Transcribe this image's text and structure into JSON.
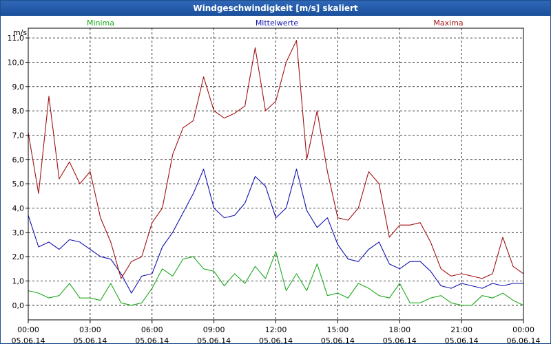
{
  "window": {
    "title": "Windgeschwindigkeit [m/s] skaliert"
  },
  "colors": {
    "minima": "#1aa81a",
    "mittel": "#1010b0",
    "maxima": "#a01010",
    "axis": "#000000",
    "grid": "#000000"
  },
  "chart_data": {
    "type": "line",
    "title": "Windgeschwindigkeit [m/s] skaliert",
    "ylabel": "m/s",
    "ylim": [
      -0.6,
      11.4
    ],
    "xlim": [
      0,
      24
    ],
    "yticks": [
      0,
      1,
      2,
      3,
      4,
      5,
      6,
      7,
      8,
      9,
      10,
      11
    ],
    "ytick_labels": [
      "0,0",
      "1,0",
      "2,0",
      "3,0",
      "4,0",
      "5,0",
      "6,0",
      "7,0",
      "8,0",
      "9,0",
      "10,0",
      "11,0"
    ],
    "xticks": [
      {
        "t": 0,
        "time": "00:00",
        "date": "05.06.14"
      },
      {
        "t": 3,
        "time": "03:00",
        "date": "05.06.14"
      },
      {
        "t": 6,
        "time": "06:00",
        "date": "05.06.14"
      },
      {
        "t": 9,
        "time": "09:00",
        "date": "05.06.14"
      },
      {
        "t": 12,
        "time": "12:00",
        "date": "05.06.14"
      },
      {
        "t": 15,
        "time": "15:00",
        "date": "05.06.14"
      },
      {
        "t": 18,
        "time": "18:00",
        "date": "05.06.14"
      },
      {
        "t": 21,
        "time": "21:00",
        "date": "05.06.14"
      },
      {
        "t": 24,
        "time": "00:00",
        "date": "06.06.14"
      }
    ],
    "legend_position": "top",
    "series": [
      {
        "name": "Minima",
        "color": "#1aa81a",
        "legend_align": "left",
        "x": [
          0,
          0.5,
          1,
          1.5,
          2,
          2.5,
          3,
          3.5,
          4,
          4.5,
          5,
          5.5,
          6,
          6.5,
          7,
          7.5,
          8,
          8.5,
          9,
          9.5,
          10,
          10.5,
          11,
          11.5,
          12,
          12.5,
          13,
          13.5,
          14,
          14.5,
          15,
          15.5,
          16,
          16.5,
          17,
          17.5,
          18,
          18.5,
          19,
          19.5,
          20,
          20.5,
          21,
          21.5,
          22,
          22.5,
          23,
          23.5,
          24
        ],
        "values": [
          0.6,
          0.5,
          0.3,
          0.4,
          0.9,
          0.3,
          0.3,
          0.2,
          0.9,
          0.1,
          0,
          0.1,
          0.7,
          1.5,
          1.2,
          1.9,
          2,
          1.5,
          1.4,
          0.8,
          1.3,
          0.9,
          1.6,
          1.1,
          2.2,
          0.6,
          1.3,
          0.6,
          1.7,
          0.4,
          0.5,
          0.3,
          0.9,
          0.7,
          0.4,
          0.3,
          0.9,
          0.1,
          0.1,
          0.3,
          0.4,
          0.1,
          0,
          0,
          0.4,
          0.3,
          0.5,
          0.2,
          0
        ]
      },
      {
        "name": "Mittelwerte",
        "color": "#1010b0",
        "legend_align": "center",
        "x": [
          0,
          0.5,
          1,
          1.5,
          2,
          2.5,
          3,
          3.5,
          4,
          4.5,
          5,
          5.5,
          6,
          6.5,
          7,
          7.5,
          8,
          8.5,
          9,
          9.5,
          10,
          10.5,
          11,
          11.5,
          12,
          12.5,
          13,
          13.5,
          14,
          14.5,
          15,
          15.5,
          16,
          16.5,
          17,
          17.5,
          18,
          18.5,
          19,
          19.5,
          20,
          20.5,
          21,
          21.5,
          22,
          22.5,
          23,
          23.5,
          24
        ],
        "values": [
          3.7,
          2.4,
          2.6,
          2.3,
          2.7,
          2.6,
          2.3,
          2.0,
          1.9,
          1.3,
          0.5,
          1.2,
          1.3,
          2.4,
          3.0,
          3.8,
          4.6,
          5.6,
          4.0,
          3.6,
          3.7,
          4.2,
          5.3,
          4.9,
          3.6,
          4.0,
          5.6,
          3.9,
          3.2,
          3.6,
          2.5,
          1.9,
          1.8,
          2.3,
          2.6,
          1.7,
          1.5,
          1.8,
          1.8,
          1.4,
          0.8,
          0.7,
          0.9,
          0.8,
          0.7,
          0.9,
          0.8,
          0.9,
          0.9
        ]
      },
      {
        "name": "Maxima",
        "color": "#a01010",
        "legend_align": "right",
        "x": [
          0,
          0.5,
          1,
          1.5,
          2,
          2.5,
          3,
          3.5,
          4,
          4.5,
          5,
          5.5,
          6,
          6.5,
          7,
          7.5,
          8,
          8.5,
          9,
          9.5,
          10,
          10.5,
          11,
          11.5,
          12,
          12.5,
          13,
          13.5,
          14,
          14.5,
          15,
          15.5,
          16,
          16.5,
          17,
          17.5,
          18,
          18.5,
          19,
          19.5,
          20,
          20.5,
          21,
          21.5,
          22,
          22.5,
          23,
          23.5,
          24
        ],
        "values": [
          7.1,
          4.6,
          8.6,
          5.2,
          5.9,
          5.0,
          5.5,
          3.6,
          2.6,
          1.1,
          1.8,
          2.0,
          3.4,
          4.0,
          6.2,
          7.3,
          7.6,
          9.4,
          8.0,
          7.7,
          7.9,
          8.2,
          10.6,
          8.0,
          8.4,
          10.0,
          10.9,
          6.0,
          8.0,
          5.5,
          3.6,
          3.5,
          4.0,
          5.5,
          5.0,
          2.8,
          3.3,
          3.3,
          3.4,
          2.6,
          1.5,
          1.2,
          1.3,
          1.2,
          1.1,
          1.3,
          2.8,
          1.6,
          1.3
        ]
      }
    ]
  }
}
